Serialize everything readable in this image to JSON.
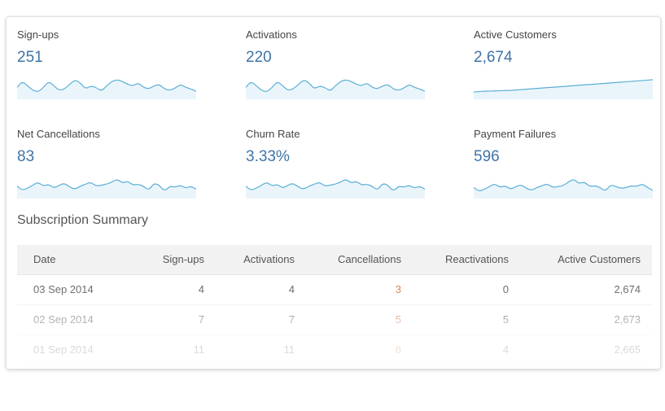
{
  "metrics": [
    {
      "label": "Sign-ups",
      "value": "251",
      "spark": [
        10,
        18,
        12,
        6,
        4,
        10,
        18,
        12,
        6,
        8,
        14,
        20,
        16,
        8,
        12,
        10,
        5,
        12,
        18,
        20,
        18,
        14,
        12,
        16,
        10,
        8,
        12,
        14,
        8,
        6,
        9,
        14,
        10,
        8,
        5
      ]
    },
    {
      "label": "Activations",
      "value": "220",
      "spark": [
        10,
        18,
        12,
        6,
        4,
        10,
        18,
        12,
        6,
        8,
        14,
        20,
        16,
        8,
        12,
        10,
        5,
        12,
        18,
        20,
        18,
        14,
        12,
        16,
        10,
        8,
        12,
        14,
        8,
        6,
        9,
        14,
        10,
        8,
        5
      ]
    },
    {
      "label": "Active Customers",
      "value": "2,674",
      "spark": [
        1,
        1.5,
        2,
        2,
        2.5,
        2.5,
        3,
        3,
        3.5,
        4,
        4.5,
        5,
        5.5,
        6,
        6.5,
        7,
        7.5,
        8,
        8.5,
        9,
        9.5,
        10,
        10.5,
        11,
        11.5,
        12,
        12.5,
        13,
        13.5,
        14,
        14.5,
        15,
        15.5,
        16,
        16.5
      ]
    },
    {
      "label": "Net Cancellations",
      "value": "83",
      "spark": [
        8,
        4,
        6,
        9,
        12,
        8,
        10,
        6,
        9,
        11,
        7,
        5,
        8,
        10,
        12,
        8,
        9,
        10,
        12,
        15,
        11,
        13,
        9,
        10,
        8,
        4,
        11,
        9,
        3,
        8,
        7,
        9,
        6,
        8,
        5
      ]
    },
    {
      "label": "Churn Rate",
      "value": "3.33%",
      "spark": [
        8,
        4,
        6,
        9,
        12,
        8,
        10,
        6,
        9,
        11,
        7,
        5,
        8,
        10,
        12,
        8,
        9,
        10,
        12,
        15,
        11,
        13,
        9,
        10,
        8,
        4,
        11,
        9,
        3,
        8,
        7,
        9,
        6,
        8,
        5
      ]
    },
    {
      "label": "Payment Failures",
      "value": "596",
      "spark": [
        8,
        4,
        6,
        9,
        12,
        8,
        10,
        6,
        9,
        11,
        7,
        5,
        8,
        10,
        12,
        8,
        9,
        10,
        14,
        17,
        12,
        14,
        9,
        10,
        8,
        4,
        11,
        9,
        7,
        8,
        10,
        9,
        12,
        8,
        5
      ]
    }
  ],
  "colors": {
    "spark_line": "#5aaed6",
    "spark_fill": "#eaf5fb",
    "value": "#3f74a7",
    "cancellation": "#d9804f"
  },
  "section_title": "Subscription Summary",
  "table": {
    "headers": [
      "Date",
      "Sign-ups",
      "Activations",
      "Cancellations",
      "Reactivations",
      "Active Customers"
    ],
    "rows": [
      [
        "03 Sep 2014",
        "4",
        "4",
        "3",
        "0",
        "2,674"
      ],
      [
        "02 Sep 2014",
        "7",
        "7",
        "5",
        "5",
        "2,673"
      ],
      [
        "01 Sep 2014",
        "11",
        "11",
        "6",
        "4",
        "2,665"
      ]
    ]
  }
}
